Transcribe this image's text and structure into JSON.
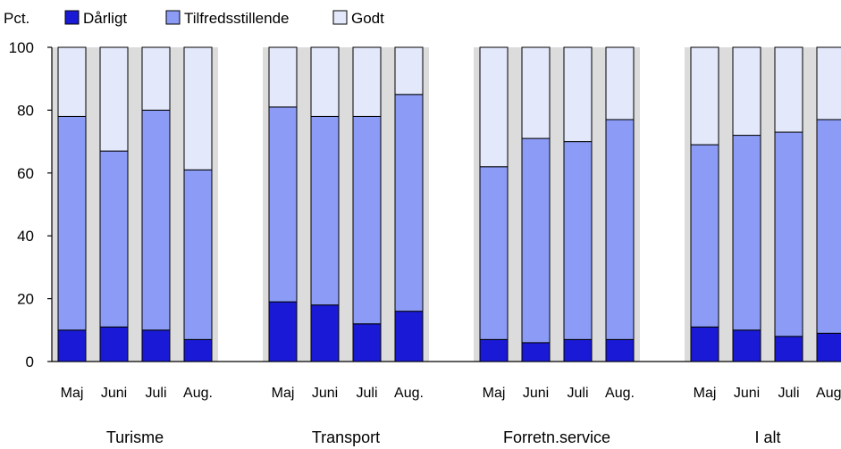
{
  "chart_data": {
    "type": "bar",
    "stacked": true,
    "title": "",
    "ylabel": "Pct.",
    "xlabel": "",
    "ylim": [
      0,
      100
    ],
    "yticks": [
      0,
      20,
      40,
      60,
      80,
      100
    ],
    "legend": "top-left",
    "grid": false,
    "groups": [
      {
        "name": "Turisme",
        "categories": [
          "Maj",
          "Juni",
          "Juli",
          "Aug."
        ]
      },
      {
        "name": "Transport",
        "categories": [
          "Maj",
          "Juni",
          "Juli",
          "Aug."
        ]
      },
      {
        "name": "Forretn.service",
        "categories": [
          "Maj",
          "Juni",
          "Juli",
          "Aug."
        ]
      },
      {
        "name": "I alt",
        "categories": [
          "Maj",
          "Juni",
          "Juli",
          "Aug."
        ]
      }
    ],
    "series": [
      {
        "name": "Dårligt",
        "color": "#1a1ad6",
        "values": [
          10,
          11,
          10,
          7,
          19,
          18,
          12,
          16,
          7,
          6,
          7,
          7,
          11,
          10,
          8,
          9
        ]
      },
      {
        "name": "Tilfredsstillende",
        "color": "#8c9cf6",
        "values": [
          68,
          56,
          70,
          54,
          62,
          60,
          66,
          69,
          55,
          65,
          63,
          70,
          58,
          62,
          65,
          68
        ]
      },
      {
        "name": "Godt",
        "color": "#e3e8fb",
        "values": [
          22,
          33,
          20,
          39,
          19,
          22,
          22,
          15,
          38,
          29,
          30,
          23,
          31,
          28,
          27,
          23
        ]
      }
    ],
    "shaded_group_background": "#dcdcdc"
  }
}
